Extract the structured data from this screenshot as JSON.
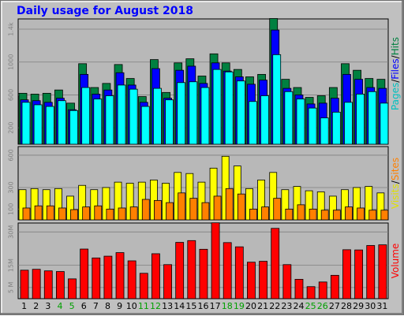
{
  "title": "Daily usage for August 2018",
  "colors": {
    "hits": "#008040",
    "files": "#0000ff",
    "pages": "#00ffff",
    "visits": "#ffff00",
    "sites": "#ff8000",
    "volume": "#ff0000",
    "weekend_day": "#00a000",
    "title": "#0000ff"
  },
  "chart_data": [
    {
      "type": "bar",
      "categories": [
        "1",
        "2",
        "3",
        "4",
        "5",
        "6",
        "7",
        "8",
        "9",
        "10",
        "11",
        "12",
        "13",
        "14",
        "15",
        "16",
        "17",
        "18",
        "19",
        "20",
        "21",
        "22",
        "23",
        "24",
        "25",
        "26",
        "27",
        "28",
        "29",
        "30",
        "31"
      ],
      "weekend_days": [
        "4",
        "5",
        "11",
        "12",
        "18",
        "19",
        "25",
        "26"
      ],
      "yticks": [
        {
          "label": "200",
          "value": 200
        },
        {
          "label": "600",
          "value": 600
        },
        {
          "label": "1000",
          "value": 1000
        },
        {
          "label": "1.4k",
          "value": 1400
        }
      ],
      "ylim": [
        0,
        1525
      ],
      "ylabel": {
        "parts": [
          "Pages",
          "Files",
          "Hits"
        ],
        "colors": [
          "#00c0c0",
          "#0000ff",
          "#008040"
        ],
        "sep": "/"
      },
      "series": [
        {
          "name": "Hits",
          "color": "#008040",
          "values": [
            620,
            610,
            620,
            660,
            500,
            980,
            690,
            740,
            970,
            800,
            580,
            1030,
            630,
            990,
            1040,
            830,
            1100,
            990,
            910,
            820,
            850,
            1530,
            790,
            690,
            570,
            590,
            690,
            980,
            900,
            800,
            790
          ]
        },
        {
          "name": "Files",
          "color": "#0000ff",
          "values": [
            540,
            530,
            510,
            560,
            420,
            850,
            610,
            660,
            870,
            720,
            510,
            920,
            560,
            900,
            950,
            740,
            990,
            890,
            820,
            730,
            780,
            1390,
            680,
            600,
            490,
            500,
            560,
            850,
            790,
            690,
            680
          ]
        },
        {
          "name": "Pages",
          "color": "#00ffff",
          "values": [
            510,
            480,
            460,
            530,
            410,
            690,
            550,
            590,
            720,
            670,
            460,
            680,
            540,
            750,
            760,
            690,
            910,
            880,
            770,
            520,
            590,
            1090,
            640,
            550,
            440,
            320,
            390,
            510,
            610,
            640,
            500
          ]
        }
      ]
    },
    {
      "type": "bar",
      "categories": [
        "1",
        "2",
        "3",
        "4",
        "5",
        "6",
        "7",
        "8",
        "9",
        "10",
        "11",
        "12",
        "13",
        "14",
        "15",
        "16",
        "17",
        "18",
        "19",
        "20",
        "21",
        "22",
        "23",
        "24",
        "25",
        "26",
        "27",
        "28",
        "29",
        "30",
        "31"
      ],
      "yticks": [
        {
          "label": "100",
          "value": 100
        },
        {
          "label": "300",
          "value": 300
        },
        {
          "label": "600",
          "value": 600
        }
      ],
      "ylim": [
        0,
        680
      ],
      "ylabel": {
        "parts": [
          "Visits",
          "Sites"
        ],
        "colors": [
          "#e0e000",
          "#ff8000"
        ],
        "sep": "/"
      },
      "series": [
        {
          "name": "Visits",
          "color": "#ffff00",
          "values": [
            280,
            290,
            280,
            290,
            220,
            320,
            280,
            300,
            350,
            340,
            350,
            370,
            340,
            440,
            430,
            350,
            480,
            590,
            500,
            290,
            370,
            440,
            280,
            310,
            270,
            260,
            220,
            280,
            300,
            310,
            250
          ]
        },
        {
          "name": "Sites",
          "color": "#ff8000",
          "values": [
            110,
            130,
            130,
            110,
            95,
            120,
            130,
            100,
            110,
            120,
            190,
            180,
            160,
            250,
            200,
            160,
            220,
            290,
            240,
            100,
            120,
            200,
            100,
            140,
            100,
            90,
            90,
            120,
            110,
            90,
            90
          ]
        }
      ]
    },
    {
      "type": "bar",
      "categories": [
        "1",
        "2",
        "3",
        "4",
        "5",
        "6",
        "7",
        "8",
        "9",
        "10",
        "11",
        "12",
        "13",
        "14",
        "15",
        "16",
        "17",
        "18",
        "19",
        "20",
        "21",
        "22",
        "23",
        "24",
        "25",
        "26",
        "27",
        "28",
        "29",
        "30",
        "31"
      ],
      "yticks": [
        {
          "label": "5 M",
          "value": 5
        },
        {
          "label": "15M",
          "value": 15
        },
        {
          "label": "30M",
          "value": 30
        }
      ],
      "ylim": [
        0,
        34
      ],
      "ylabel": {
        "parts": [
          "Volume"
        ],
        "colors": [
          "#ff0000"
        ],
        "sep": "/"
      },
      "series": [
        {
          "name": "Volume",
          "color": "#ff0000",
          "values": [
            12.8,
            13.2,
            12.5,
            12.2,
            8.9,
            22.3,
            18.3,
            19.1,
            20.7,
            17.0,
            11.4,
            20.2,
            15.3,
            25.3,
            26.1,
            22.2,
            34.1,
            25.2,
            23.3,
            16.4,
            16.8,
            31.6,
            15.3,
            8.7,
            5.4,
            7.5,
            10.5,
            22.0,
            21.9,
            23.9,
            24.2
          ]
        }
      ]
    }
  ]
}
